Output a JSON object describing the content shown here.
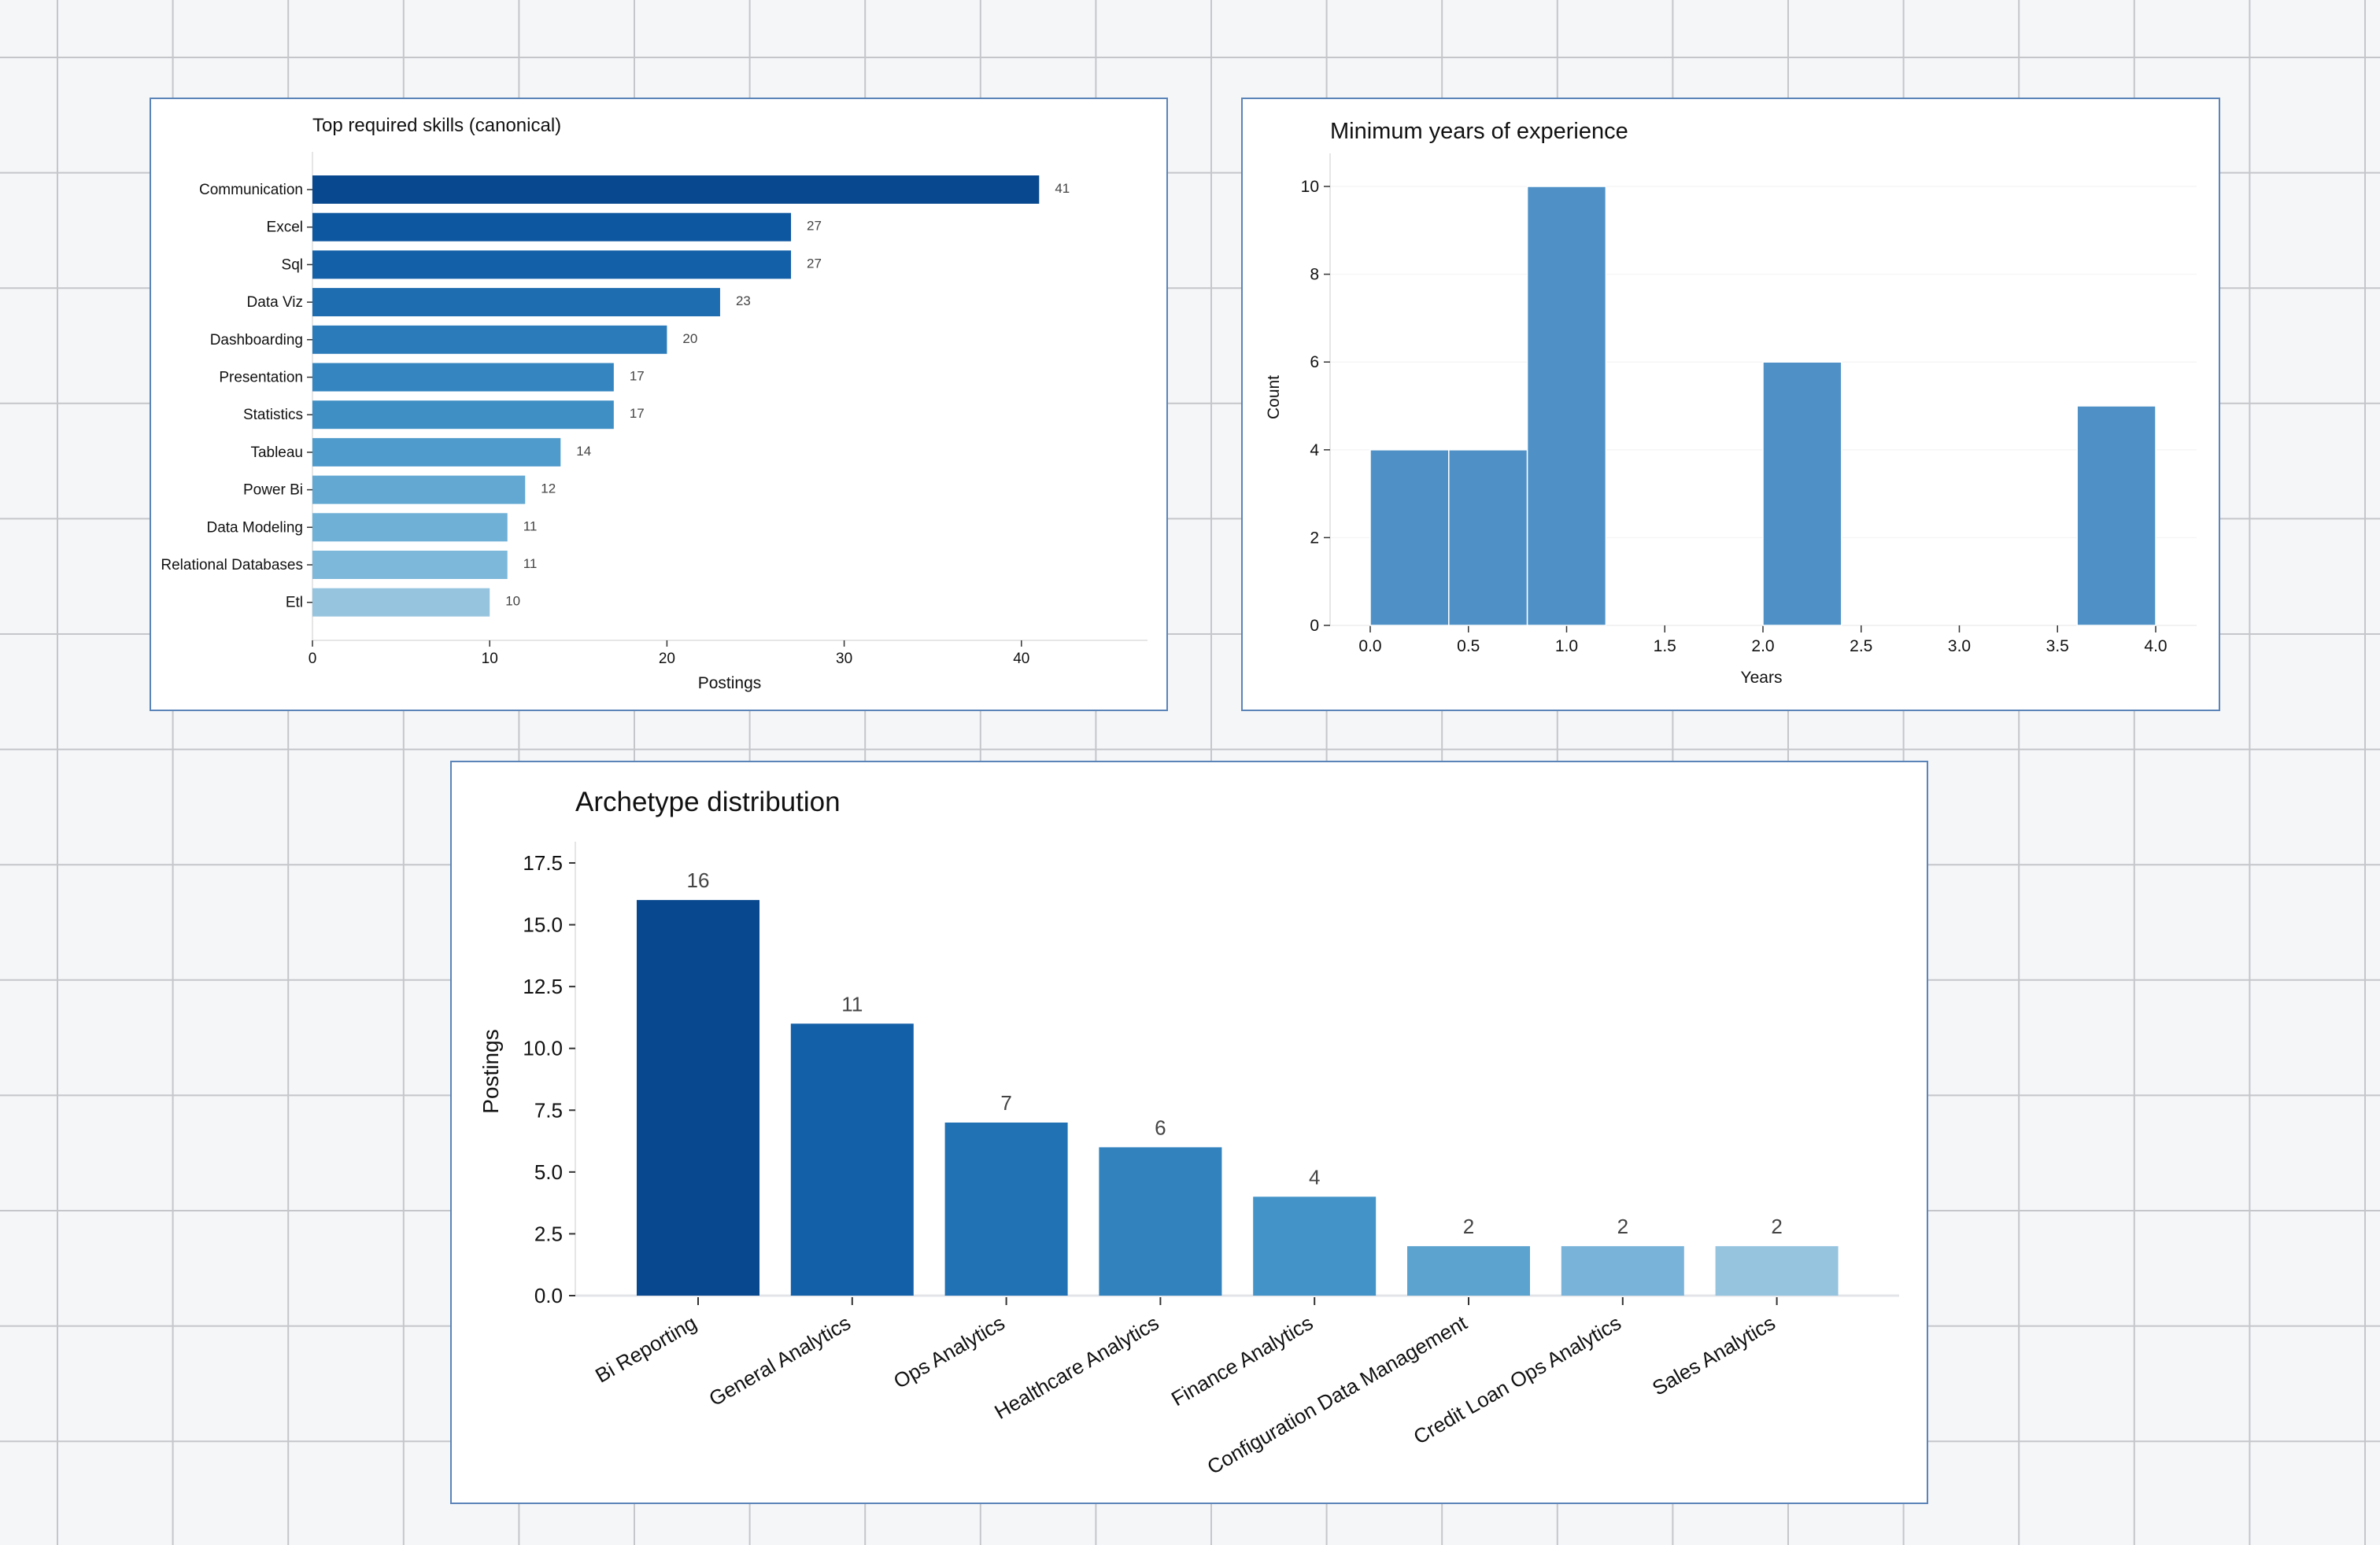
{
  "chart_data": [
    {
      "type": "bar",
      "orientation": "horizontal",
      "title": "Top required skills (canonical)",
      "xlabel": "Postings",
      "ylabel": "",
      "categories": [
        "Communication",
        "Excel",
        "Sql",
        "Data Viz",
        "Dashboarding",
        "Presentation",
        "Statistics",
        "Tableau",
        "Power Bi",
        "Data Modeling",
        "Relational Databases",
        "Etl"
      ],
      "values": [
        41,
        27,
        27,
        23,
        20,
        17,
        17,
        14,
        12,
        11,
        11,
        10
      ],
      "xlim": [
        0,
        47
      ],
      "xticks": [
        "0",
        "10",
        "20",
        "30",
        "40"
      ],
      "colors": [
        "#08488e",
        "#0d56a0",
        "#1460a8",
        "#1f6db1",
        "#2b7bba",
        "#3585c0",
        "#3f8fc5",
        "#4f9bcb",
        "#62a8d3",
        "#6eb0d6",
        "#7db8da",
        "#96c4df"
      ],
      "grid": false
    },
    {
      "type": "histogram",
      "title": "Minimum years of experience",
      "xlabel": "Years",
      "ylabel": "Count",
      "bins": [
        {
          "start": 0.0,
          "end": 0.4,
          "count": 4
        },
        {
          "start": 0.4,
          "end": 0.8,
          "count": 4
        },
        {
          "start": 0.8,
          "end": 1.2,
          "count": 10
        },
        {
          "start": 2.0,
          "end": 2.4,
          "count": 6
        },
        {
          "start": 3.6,
          "end": 4.0,
          "count": 5
        }
      ],
      "xticks": [
        "0.0",
        "0.5",
        "1.0",
        "1.5",
        "2.0",
        "2.5",
        "3.0",
        "3.5",
        "4.0"
      ],
      "yticks": [
        "0",
        "2",
        "4",
        "6",
        "8",
        "10"
      ],
      "ylim": [
        0,
        10.5
      ],
      "color": "#4f91c6",
      "grid": true
    },
    {
      "type": "bar",
      "title": "Archetype distribution",
      "xlabel": "",
      "ylabel": "Postings",
      "categories": [
        "Bi Reporting",
        "General Analytics",
        "Ops Analytics",
        "Healthcare Analytics",
        "Finance Analytics",
        "Configuration Data Management",
        "Credit Loan Ops Analytics",
        "Sales Analytics"
      ],
      "values": [
        16,
        11,
        7,
        6,
        4,
        2,
        2,
        2
      ],
      "yticks": [
        "0.0",
        "2.5",
        "5.0",
        "7.5",
        "10.0",
        "12.5",
        "15.0",
        "17.5"
      ],
      "ylim": [
        0,
        18
      ],
      "colors": [
        "#08488e",
        "#1460a8",
        "#2171b5",
        "#3282be",
        "#4393c8",
        "#5da3d0",
        "#7ab3d9",
        "#96c4df"
      ],
      "grid": false
    }
  ]
}
